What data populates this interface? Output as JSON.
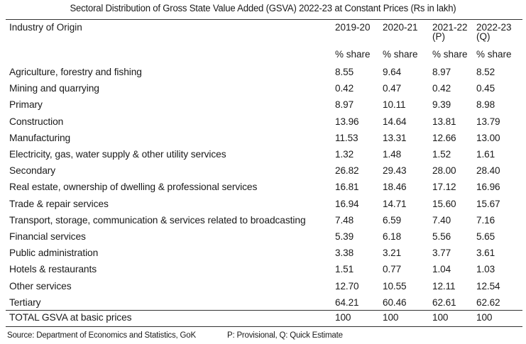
{
  "title": "Sectoral Distribution of Gross State Value Added (GSVA) 2022-23 at Constant Prices (Rs  in lakh)",
  "header": {
    "industry": "Industry of Origin",
    "years": [
      {
        "line1": "2019-20",
        "line2": ""
      },
      {
        "line1": "2020-21",
        "line2": ""
      },
      {
        "line1": "2021-22",
        "line2": "(P)"
      },
      {
        "line1": "2022-23",
        "line2": "(Q)"
      }
    ],
    "unit": "% share"
  },
  "rows": [
    {
      "label": "Agriculture, forestry and fishing",
      "values": [
        "8.55",
        "9.64",
        "8.97",
        "8.52"
      ]
    },
    {
      "label": "Mining and quarrying",
      "values": [
        "0.42",
        "0.47",
        "0.42",
        "0.45"
      ]
    },
    {
      "label": "Primary",
      "values": [
        "8.97",
        "10.11",
        "9.39",
        "8.98"
      ]
    },
    {
      "label": "Construction",
      "values": [
        "13.96",
        "14.64",
        "13.81",
        "13.79"
      ]
    },
    {
      "label": "Manufacturing",
      "values": [
        "11.53",
        "13.31",
        "12.66",
        "13.00"
      ]
    },
    {
      "label": "Electricity, gas, water supply & other utility services",
      "values": [
        "1.32",
        "1.48",
        "1.52",
        "1.61"
      ]
    },
    {
      "label": "Secondary",
      "values": [
        "26.82",
        "29.43",
        "28.00",
        "28.40"
      ]
    },
    {
      "label": "Real estate, ownership of dwelling & professional services",
      "values": [
        "16.81",
        "18.46",
        "17.12",
        "16.96"
      ]
    },
    {
      "label": "Trade & repair services",
      "values": [
        "16.94",
        "14.71",
        "15.60",
        "15.67"
      ]
    },
    {
      "label": "Transport, storage, communication & services related to broadcasting",
      "values": [
        "7.48",
        "6.59",
        "7.40",
        "7.16"
      ]
    },
    {
      "label": "Financial services",
      "values": [
        "5.39",
        "6.18",
        "5.56",
        "5.65"
      ]
    },
    {
      "label": "Public administration",
      "values": [
        "3.38",
        "3.21",
        "3.77",
        "3.61"
      ]
    },
    {
      "label": "Hotels & restaurants",
      "values": [
        "1.51",
        "0.77",
        "1.04",
        "1.03"
      ]
    },
    {
      "label": "Other services",
      "values": [
        "12.70",
        "10.55",
        "12.11",
        "12.54"
      ]
    },
    {
      "label": "Tertiary",
      "values": [
        "64.21",
        "60.46",
        "62.61",
        "62.62"
      ]
    }
  ],
  "total": {
    "label": "TOTAL GSVA at basic prices",
    "values": [
      "100",
      "100",
      "100",
      "100"
    ]
  },
  "footer": {
    "source": "Source: Department of Economics and Statistics, GoK",
    "note": "P: Provisional, Q: Quick Estimate"
  }
}
